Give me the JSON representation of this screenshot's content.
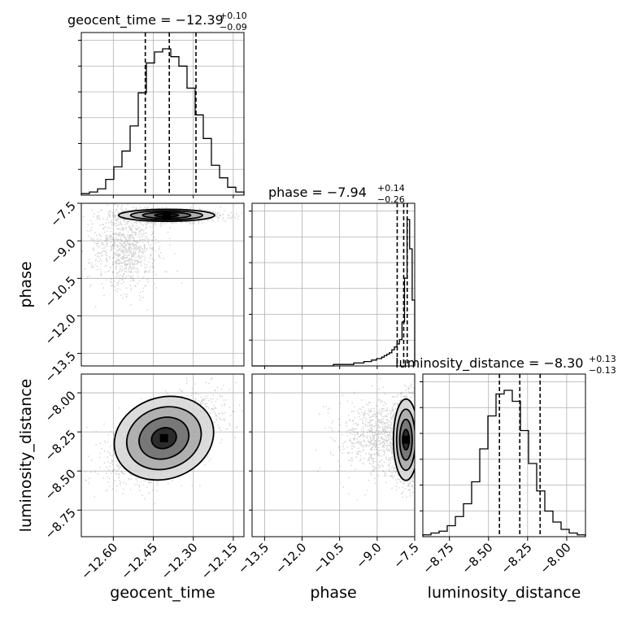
{
  "chart_data": {
    "type": "corner",
    "parameters": [
      "geocent_time",
      "phase",
      "luminosity_distance"
    ],
    "axes": {
      "geocent_time": {
        "label": "geocent_time",
        "range": [
          -12.72,
          -12.11
        ],
        "ticks": [
          -12.6,
          -12.45,
          -12.3,
          -12.15
        ],
        "tick_labels": [
          "−12.60",
          "−12.45",
          "−12.30",
          "−12.15"
        ]
      },
      "phase": {
        "label": "phase",
        "range": [
          -14.0,
          -7.5
        ],
        "ticks": [
          -13.5,
          -12.0,
          -10.5,
          -9.0,
          -7.5
        ],
        "tick_labels": [
          "−13.5",
          "−12.0",
          "−10.5",
          "−9.0",
          "−7.5"
        ]
      },
      "luminosity_distance": {
        "label": "luminosity_distance",
        "range": [
          -8.92,
          -7.88
        ],
        "ticks": [
          -8.75,
          -8.5,
          -8.25,
          -8.0
        ],
        "tick_labels": [
          "−8.75",
          "−8.50",
          "−8.25",
          "−8.00"
        ]
      }
    },
    "marginals": [
      {
        "parameter": "geocent_time",
        "title": "geocent_time = −12.39",
        "median": -12.39,
        "plus": 0.1,
        "minus": 0.09,
        "plus_label": "+0.10",
        "minus_label": "−0.09",
        "quantiles": [
          -12.48,
          -12.39,
          -12.29
        ],
        "hist_edges_range": [
          -12.72,
          -12.11
        ],
        "hist_counts": [
          1,
          2,
          4,
          10,
          18,
          28,
          44,
          65,
          84,
          91,
          93,
          88,
          82,
          68,
          51,
          36,
          19,
          11,
          5,
          2
        ]
      },
      {
        "parameter": "phase",
        "title": "phase = −7.94",
        "median": -7.94,
        "plus": 0.14,
        "minus": 0.26,
        "plus_label": "+0.14",
        "minus_label": "−0.26",
        "quantiles": [
          -8.2,
          -7.94,
          -7.8
        ],
        "hist_edges_range": [
          -14.0,
          -7.5
        ],
        "hist_counts": [
          0,
          0,
          0,
          0,
          0,
          0,
          0,
          0,
          0,
          0,
          0,
          0,
          0,
          0,
          0,
          0,
          0,
          0,
          0,
          0,
          0,
          0,
          0,
          0,
          0,
          0,
          0,
          0,
          0,
          0,
          0,
          0,
          1,
          1,
          1,
          1,
          1,
          1,
          1,
          1,
          2,
          2,
          2,
          2,
          3,
          3,
          3,
          4,
          4,
          5,
          5,
          6,
          7,
          8,
          9,
          11,
          13,
          15,
          18,
          30,
          60,
          100,
          80,
          45
        ]
      },
      {
        "parameter": "luminosity_distance",
        "title": "luminosity_distance = −8.30",
        "median": -8.3,
        "plus": 0.13,
        "minus": 0.13,
        "plus_label": "+0.13",
        "minus_label": "−0.13",
        "quantiles": [
          -8.43,
          -8.3,
          -8.17
        ],
        "hist_edges_range": [
          -8.92,
          -7.88
        ],
        "hist_counts": [
          1,
          2,
          3,
          6,
          11,
          18,
          30,
          48,
          66,
          78,
          80,
          74,
          58,
          40,
          25,
          14,
          8,
          4,
          2,
          1
        ]
      }
    ],
    "joints": [
      {
        "x": "geocent_time",
        "y": "phase",
        "mean": [
          -12.4,
          -7.98
        ],
        "sd": [
          0.09,
          0.12
        ],
        "corr": 0.0,
        "tail": {
          "mean": [
            -12.55,
            -9.2
          ],
          "sd": [
            0.06,
            0.8
          ]
        }
      },
      {
        "x": "geocent_time",
        "y": "luminosity_distance",
        "mean": [
          -12.41,
          -8.29
        ],
        "sd": [
          0.095,
          0.13
        ],
        "corr": 0.55
      },
      {
        "x": "phase",
        "y": "luminosity_distance",
        "mean": [
          -7.85,
          -8.3
        ],
        "sd": [
          0.25,
          0.13
        ],
        "corr": 0.0,
        "tail": {
          "mean": [
            -8.8,
            -8.28
          ],
          "sd": [
            0.9,
            0.12
          ]
        }
      }
    ],
    "contour_levels_sigma": [
      0.5,
      1.0,
      1.5,
      2.0
    ]
  }
}
